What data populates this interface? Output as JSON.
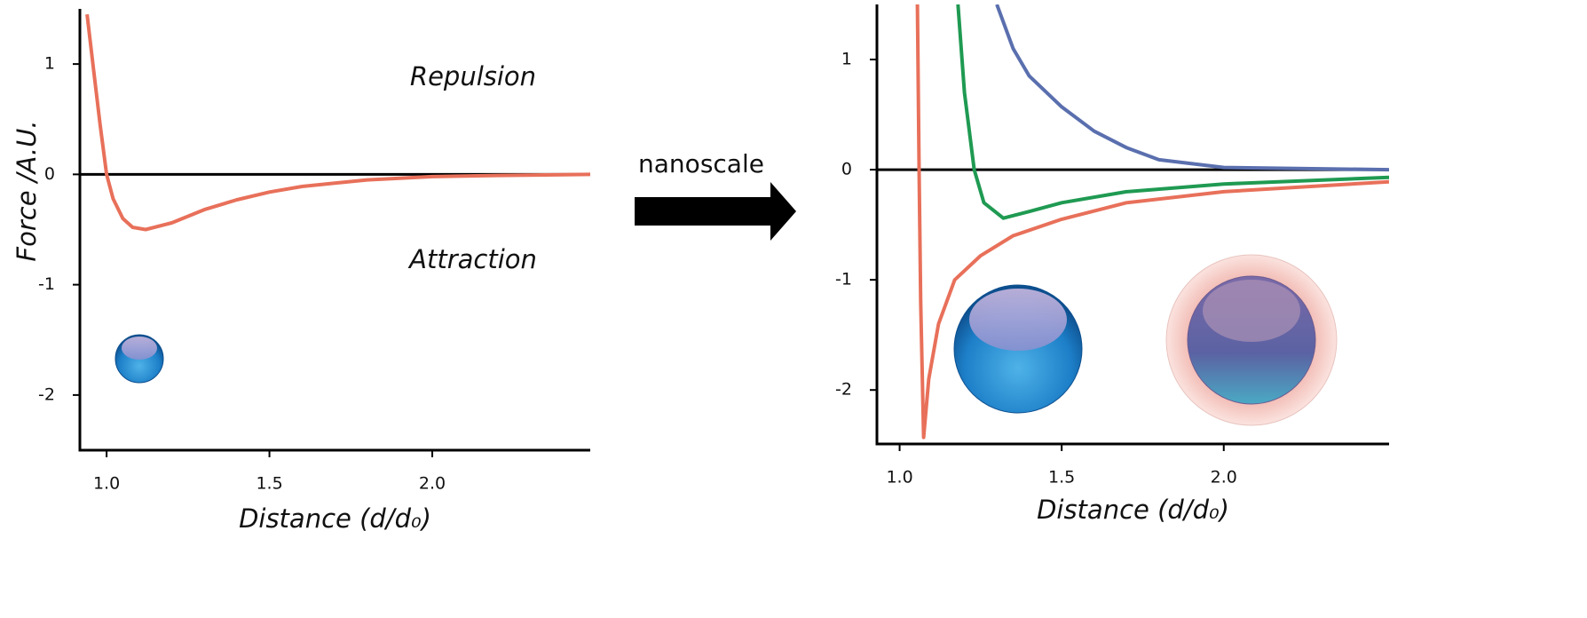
{
  "chart_data": [
    {
      "type": "line",
      "y_label": "Force /A.U.",
      "x_label": "Distance (d/d₀)",
      "annotations": [
        "Repulsion",
        "Attraction"
      ],
      "xlim": [
        0.918,
        2.485
      ],
      "ylim": [
        -2.5,
        1.5
      ],
      "xticks": [
        {
          "value": 1,
          "label": "1.0"
        },
        1.5,
        {
          "value": 2,
          "label": "2.0"
        }
      ],
      "yticks": [
        1,
        0,
        -1,
        -2
      ],
      "series": [
        {
          "color": "#e8705a",
          "x": [
            0.94,
            0.96,
            0.98,
            1.0,
            1.02,
            1.05,
            1.08,
            1.12,
            1.2,
            1.3,
            1.4,
            1.5,
            1.6,
            1.8,
            2.0,
            2.2,
            2.485
          ],
          "values": [
            1.45,
            0.95,
            0.45,
            0.0,
            -0.22,
            -0.4,
            -0.48,
            -0.5,
            -0.44,
            -0.32,
            -0.23,
            -0.16,
            -0.11,
            -0.05,
            -0.02,
            -0.01,
            0
          ]
        }
      ]
    },
    {
      "type": "line",
      "x_label": "Distance (d/d₀)",
      "xlim": [
        0.93,
        2.51
      ],
      "ylim": [
        -2.49,
        1.5
      ],
      "xticks": [
        {
          "value": 1,
          "label": "1.0"
        },
        1.5,
        {
          "value": 2,
          "label": "2.0"
        }
      ],
      "yticks": [
        1,
        0,
        -1,
        -2
      ],
      "series": [
        {
          "color": "#5a6fae",
          "x": [
            1.3,
            1.35,
            1.4,
            1.5,
            1.6,
            1.7,
            1.8,
            2.0,
            2.51
          ],
          "values": [
            1.5,
            1.1,
            0.85,
            0.57,
            0.35,
            0.2,
            0.09,
            0.02,
            0
          ]
        },
        {
          "color": "#1f9a52",
          "x": [
            1.18,
            1.2,
            1.23,
            1.26,
            1.32,
            1.4,
            1.5,
            1.7,
            2.0,
            2.51
          ],
          "values": [
            1.5,
            0.7,
            0,
            -0.3,
            -0.44,
            -0.38,
            -0.3,
            -0.2,
            -0.13,
            -0.07
          ]
        },
        {
          "color": "#e8705a",
          "x": [
            1.055,
            1.06,
            1.065,
            1.074,
            1.09,
            1.12,
            1.17,
            1.25,
            1.35,
            1.5,
            1.7,
            2.0,
            2.51
          ],
          "values": [
            1.5,
            0.0,
            -1.2,
            -2.43,
            -1.9,
            -1.4,
            -1.0,
            -0.78,
            -0.6,
            -0.45,
            -0.3,
            -0.2,
            -0.11
          ]
        }
      ]
    }
  ],
  "arrow_label": "nanoscale"
}
